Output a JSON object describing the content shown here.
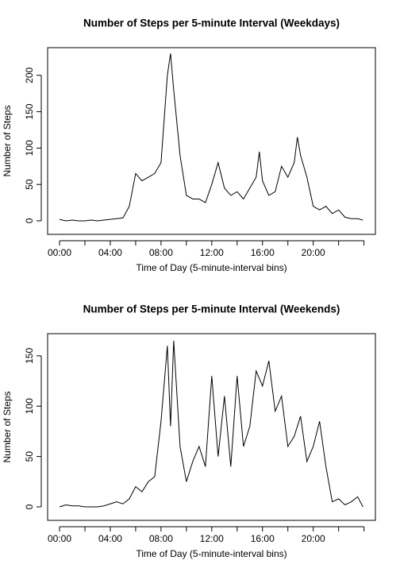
{
  "chart_data": [
    {
      "type": "line",
      "title": "Number of Steps per 5-minute Interval (Weekdays)",
      "x_label": "Time of Day (5-minute-interval bins)",
      "y_label": "Number of Steps",
      "x": [
        0,
        0.5,
        1,
        1.5,
        2,
        2.5,
        3,
        3.5,
        4,
        4.5,
        5,
        5.5,
        6,
        6.5,
        7,
        7.5,
        8,
        8.5,
        8.75,
        9,
        9.5,
        10,
        10.5,
        11,
        11.5,
        12,
        12.5,
        13,
        13.5,
        14,
        14.5,
        15,
        15.5,
        15.75,
        16,
        16.5,
        17,
        17.5,
        18,
        18.5,
        18.75,
        19,
        19.5,
        20,
        20.5,
        21,
        21.5,
        22,
        22.5,
        23,
        23.5,
        23.92
      ],
      "series": [
        {
          "name": "Weekdays",
          "color": "#000000",
          "values": [
            2,
            0,
            1,
            0,
            0,
            1,
            0,
            1,
            2,
            3,
            4,
            20,
            65,
            55,
            60,
            65,
            80,
            200,
            230,
            180,
            90,
            35,
            30,
            30,
            25,
            50,
            80,
            45,
            35,
            40,
            30,
            45,
            60,
            95,
            55,
            35,
            40,
            75,
            60,
            80,
            115,
            90,
            60,
            20,
            15,
            20,
            10,
            15,
            5,
            3,
            3,
            1
          ]
        }
      ],
      "xlim": [
        -0.94,
        24.9
      ],
      "ylim": [
        -18.6,
        238
      ],
      "xticks": [
        {
          "value": 0,
          "label": "00:00"
        },
        {
          "value": 4,
          "label": "04:00"
        },
        {
          "value": 8,
          "label": "08:00"
        },
        {
          "value": 12,
          "label": "12:00"
        },
        {
          "value": 16,
          "label": "16:00"
        },
        {
          "value": 20,
          "label": "20:00"
        }
      ],
      "xminorticks": [
        2,
        6,
        10,
        14,
        18,
        22,
        24
      ],
      "yticks": [
        0,
        50,
        100,
        150,
        200
      ]
    },
    {
      "type": "line",
      "title": "Number of Steps per 5-minute Interval (Weekends)",
      "x_label": "Time of Day (5-minute-interval bins)",
      "y_label": "Number of Steps",
      "x": [
        0,
        0.5,
        1,
        1.5,
        2,
        2.5,
        3,
        3.5,
        4,
        4.5,
        5,
        5.5,
        6,
        6.5,
        7,
        7.5,
        8,
        8.5,
        8.75,
        9,
        9.5,
        10,
        10.5,
        11,
        11.5,
        12,
        12.5,
        13,
        13.5,
        14,
        14.5,
        15,
        15.5,
        16,
        16.5,
        17,
        17.5,
        18,
        18.5,
        19,
        19.5,
        20,
        20.5,
        21,
        21.5,
        22,
        22.5,
        23,
        23.5,
        23.92
      ],
      "series": [
        {
          "name": "Weekends",
          "color": "#000000",
          "values": [
            0,
            2,
            1,
            1,
            0,
            0,
            0,
            1,
            3,
            5,
            3,
            8,
            20,
            15,
            25,
            30,
            85,
            160,
            80,
            165,
            60,
            25,
            45,
            60,
            40,
            130,
            50,
            110,
            40,
            130,
            60,
            80,
            135,
            120,
            145,
            95,
            110,
            60,
            70,
            90,
            45,
            60,
            85,
            40,
            5,
            8,
            2,
            5,
            10,
            0
          ]
        }
      ],
      "xlim": [
        -0.94,
        24.9
      ],
      "ylim": [
        -13.4,
        172
      ],
      "xticks": [
        {
          "value": 0,
          "label": "00:00"
        },
        {
          "value": 4,
          "label": "04:00"
        },
        {
          "value": 8,
          "label": "08:00"
        },
        {
          "value": 12,
          "label": "12:00"
        },
        {
          "value": 16,
          "label": "16:00"
        },
        {
          "value": 20,
          "label": "20:00"
        }
      ],
      "xminorticks": [
        2,
        6,
        10,
        14,
        18,
        22,
        24
      ],
      "yticks": [
        0,
        50,
        100,
        150
      ]
    }
  ]
}
